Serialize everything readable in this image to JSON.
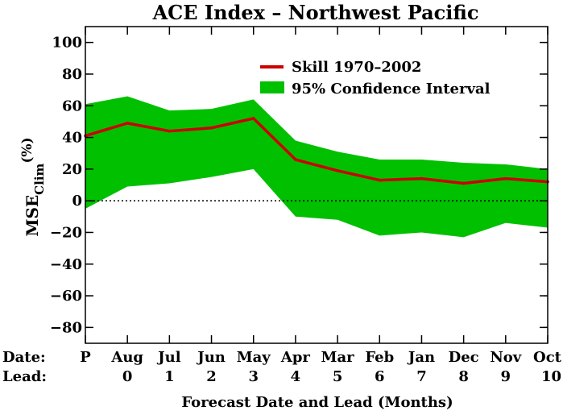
{
  "chart_data": {
    "type": "line",
    "title": "ACE Index – Northwest Pacific",
    "xlabel": "Forecast Date and Lead (Months)",
    "ylabel": {
      "main": "MSE",
      "sub": "Clim",
      "unit": "(%)"
    },
    "ylim": [
      -90,
      110
    ],
    "yticks": [
      -80,
      -60,
      -40,
      -20,
      0,
      20,
      40,
      60,
      80,
      100
    ],
    "row_labels": {
      "date": "Date:",
      "lead": "Lead:"
    },
    "categories": [
      "P",
      "Aug",
      "Jul",
      "Jun",
      "May",
      "Apr",
      "Mar",
      "Feb",
      "Jan",
      "Dec",
      "Nov",
      "Oct"
    ],
    "leads": [
      "",
      "0",
      "1",
      "2",
      "3",
      "4",
      "5",
      "6",
      "7",
      "8",
      "9",
      "10"
    ],
    "series": [
      {
        "name": "Skill 1970–2002",
        "color": "#cc0000",
        "values": [
          41,
          49,
          44,
          46,
          52,
          26,
          19,
          13,
          14,
          11,
          14,
          12
        ]
      }
    ],
    "confidence_interval": {
      "name": "95% Confidence Interval",
      "color": "#00c000",
      "upper": [
        61,
        66,
        57,
        58,
        64,
        38,
        31,
        26,
        26,
        24,
        23,
        20
      ],
      "lower": [
        -5,
        9,
        11,
        15,
        20,
        -10,
        -12,
        -22,
        -20,
        -23,
        -14,
        -17
      ]
    },
    "zero_line": "dotted",
    "grid": false,
    "legend": "top-right"
  }
}
